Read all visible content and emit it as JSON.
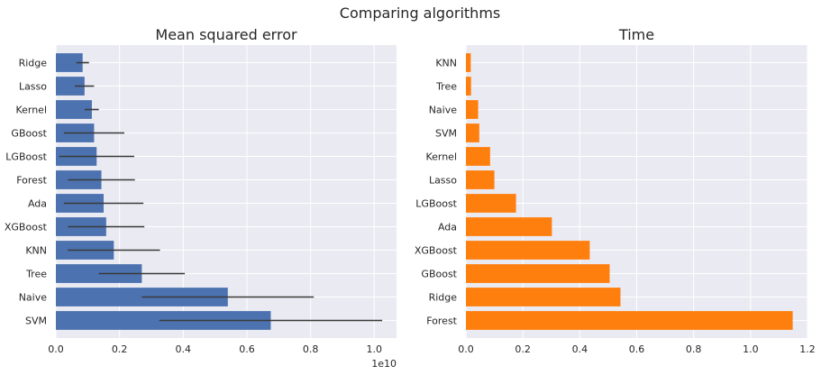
{
  "figure": {
    "title": "Comparing algorithms",
    "background": "#ffffff",
    "axes_facecolor": "#eaeaf2",
    "grid_color": "#ffffff"
  },
  "chart_data": [
    {
      "type": "bar",
      "orientation": "horizontal",
      "title": "Mean squared error",
      "xlabel": "",
      "ylabel": "",
      "x_offset_label": "1e10",
      "xlim": [
        0,
        1.07
      ],
      "xticks": [
        "0.0",
        "0.2",
        "0.4",
        "0.6",
        "0.8",
        "1.0"
      ],
      "color": "#4c72b0",
      "error_color": "#3a3a3a",
      "grid": true,
      "categories": [
        "Ridge",
        "Lasso",
        "Kernel",
        "GBoost",
        "LGBoost",
        "Forest",
        "Ada",
        "XGBoost",
        "KNN",
        "Tree",
        "Naive",
        "SVM"
      ],
      "values": [
        0.084,
        0.09,
        0.113,
        0.12,
        0.128,
        0.143,
        0.15,
        0.158,
        0.182,
        0.27,
        0.54,
        0.675
      ],
      "errors": [
        0.02,
        0.03,
        0.022,
        0.095,
        0.118,
        0.105,
        0.125,
        0.12,
        0.145,
        0.135,
        0.27,
        0.35
      ]
    },
    {
      "type": "bar",
      "orientation": "horizontal",
      "title": "Time",
      "xlabel": "",
      "ylabel": "",
      "xlim": [
        0,
        1.2
      ],
      "xticks": [
        "0.0",
        "0.2",
        "0.4",
        "0.6",
        "0.8",
        "1.0",
        "1.2"
      ],
      "color": "#ff7f0e",
      "grid": true,
      "categories": [
        "KNN",
        "Tree",
        "Naive",
        "SVM",
        "Kernel",
        "Lasso",
        "LGBoost",
        "Ada",
        "XGBoost",
        "GBoost",
        "Ridge",
        "Forest"
      ],
      "values": [
        0.017,
        0.018,
        0.043,
        0.047,
        0.085,
        0.1,
        0.176,
        0.302,
        0.435,
        0.505,
        0.543,
        1.148
      ]
    }
  ]
}
